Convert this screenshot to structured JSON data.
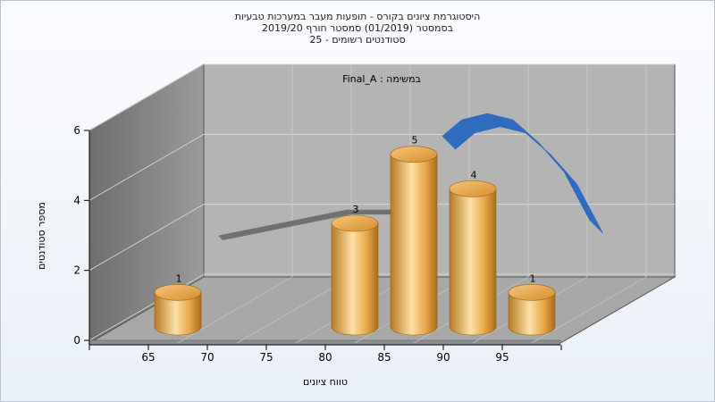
{
  "chart_data": {
    "type": "bar",
    "title_lines": [
      "היסטוגרמת ציונים בקורס - תופעות מעבר במערכות טבעיות",
      "בסמסטר  (01/2019)  סמסטר חורף 2019/20",
      "סטודנטים רשומים - 25"
    ],
    "subtitle": "במשימה : Final_A",
    "xlabel": "טווח ציונים",
    "ylabel": "מספר סטודנטים",
    "x_ticks": [
      "65",
      "70",
      "75",
      "80",
      "85",
      "90",
      "95"
    ],
    "y_ticks": [
      "0",
      "2",
      "4",
      "6"
    ],
    "ylim": [
      0,
      6
    ],
    "bars": [
      {
        "x": 65,
        "value": 1
      },
      {
        "x": 80,
        "value": 3
      },
      {
        "x": 85,
        "value": 5
      },
      {
        "x": 90,
        "value": 4
      },
      {
        "x": 95,
        "value": 1
      }
    ],
    "ribbon_curves": [
      {
        "color": "#707070",
        "points": [
          [
            65,
            1.0
          ],
          [
            75,
            1.8
          ],
          [
            80,
            1.8
          ],
          [
            81.5,
            2.1
          ]
        ]
      },
      {
        "color": "#2f6bbf",
        "points": [
          [
            82.5,
            4.1
          ],
          [
            84,
            4.6
          ],
          [
            86,
            4.8
          ],
          [
            88,
            4.6
          ],
          [
            90,
            3.9
          ],
          [
            92,
            3.0
          ],
          [
            94,
            1.5
          ]
        ]
      }
    ],
    "colors": {
      "bar": "#e8a94a",
      "bar_highlight": "#fde0a8",
      "bar_dark": "#b97a22",
      "wall_left": "#808080",
      "wall_back": "#b4b4b4",
      "floor": "#a8a8a8"
    }
  }
}
